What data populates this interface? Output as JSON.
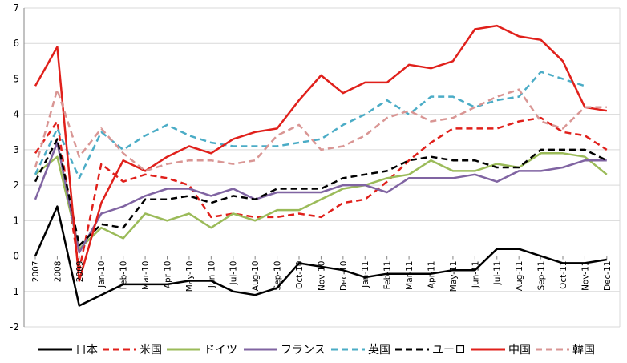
{
  "chart_data": {
    "type": "line",
    "title": "",
    "xlabel": "",
    "ylabel": "",
    "ylim": [
      -2,
      7
    ],
    "yticks": [
      -2,
      -1,
      0,
      1,
      2,
      3,
      4,
      5,
      6,
      7
    ],
    "grid": true,
    "legend_position": "bottom",
    "categories": [
      "2007",
      "2008",
      "2009",
      "Jan-10",
      "Feb-10",
      "Mar-10",
      "Apr-10",
      "May-10",
      "Jun-10",
      "Jul-10",
      "Aug-10",
      "Sep-10",
      "Oct-10",
      "Nov-10",
      "Dec-10",
      "Jan-11",
      "Feb-11",
      "Mar-11",
      "Apr-11",
      "May-11",
      "Jun-11",
      "Jul-11",
      "Aug-11",
      "Sep-11",
      "Oct-11",
      "Nov-11",
      "Dec-11"
    ],
    "tick_labels": [
      "2007",
      "2008",
      "2009",
      "Jan-10",
      "Feb-10",
      "Mar-10",
      "Apr-10",
      "May-10",
      "Jun-10",
      "Jul-10",
      "Aug-10",
      "Sep-10",
      "Oct-10",
      "Nov-10",
      "Dec-10",
      "Jan-11",
      "Feb-11",
      "Mar-11",
      "Apr-11",
      "May-11",
      "Jun-11",
      "Jul-11",
      "Aug-11",
      "Sep-11",
      "Oct-11",
      "Nov-11",
      "Dec-11"
    ],
    "series": [
      {
        "name": "日本",
        "color": "#000000",
        "dash": "solid",
        "values": [
          0,
          1.4,
          -1.4,
          -1.1,
          -0.8,
          -0.8,
          -0.8,
          -0.7,
          -0.7,
          -1.0,
          -1.1,
          -0.9,
          -0.2,
          -0.3,
          -0.4,
          -0.6,
          -0.5,
          -0.5,
          -0.5,
          -0.4,
          -0.4,
          0.2,
          0.2,
          0.0,
          -0.2,
          -0.2,
          -0.1
        ]
      },
      {
        "name": "米国",
        "color": "#e0201b",
        "dash": "dashed",
        "values": [
          2.9,
          3.8,
          -0.4,
          2.6,
          2.1,
          2.3,
          2.2,
          2.0,
          1.1,
          1.2,
          1.1,
          1.1,
          1.2,
          1.1,
          1.5,
          1.6,
          2.1,
          2.7,
          3.2,
          3.6,
          3.6,
          3.6,
          3.8,
          3.9,
          3.5,
          3.4,
          3.0
        ]
      },
      {
        "name": "ドイツ",
        "color": "#9bbb59",
        "dash": "solid",
        "values": [
          2.3,
          2.8,
          0.2,
          0.8,
          0.5,
          1.2,
          1.0,
          1.2,
          0.8,
          1.2,
          1.0,
          1.3,
          1.3,
          1.6,
          1.9,
          2.0,
          2.2,
          2.3,
          2.7,
          2.4,
          2.4,
          2.6,
          2.5,
          2.9,
          2.9,
          2.8,
          2.3
        ]
      },
      {
        "name": "フランス",
        "color": "#8064a2",
        "dash": "solid",
        "values": [
          1.6,
          3.2,
          0.1,
          1.2,
          1.4,
          1.7,
          1.9,
          1.9,
          1.7,
          1.9,
          1.6,
          1.8,
          1.8,
          1.8,
          2.0,
          2.0,
          1.8,
          2.2,
          2.2,
          2.2,
          2.3,
          2.1,
          2.4,
          2.4,
          2.5,
          2.7,
          2.7
        ]
      },
      {
        "name": "英国",
        "color": "#4bacc6",
        "dash": "dashed",
        "values": [
          2.3,
          3.6,
          2.2,
          3.5,
          3.0,
          3.4,
          3.7,
          3.4,
          3.2,
          3.1,
          3.1,
          3.1,
          3.2,
          3.3,
          3.7,
          4.0,
          4.4,
          4.0,
          4.5,
          4.5,
          4.2,
          4.4,
          4.5,
          5.2,
          5.0,
          4.8,
          null
        ]
      },
      {
        "name": "ユーロ",
        "color": "#000000",
        "dash": "dashed",
        "values": [
          2.1,
          3.3,
          0.3,
          0.9,
          0.8,
          1.6,
          1.6,
          1.7,
          1.5,
          1.7,
          1.6,
          1.9,
          1.9,
          1.9,
          2.2,
          2.3,
          2.4,
          2.7,
          2.8,
          2.7,
          2.7,
          2.5,
          2.5,
          3.0,
          3.0,
          3.0,
          2.7
        ]
      },
      {
        "name": "中国",
        "color": "#e0201b",
        "dash": "solid",
        "values": [
          4.8,
          5.9,
          -0.7,
          1.5,
          2.7,
          2.4,
          2.8,
          3.1,
          2.9,
          3.3,
          3.5,
          3.6,
          4.4,
          5.1,
          4.6,
          4.9,
          4.9,
          5.4,
          5.3,
          5.5,
          6.4,
          6.5,
          6.2,
          6.1,
          5.5,
          4.2,
          4.1
        ]
      },
      {
        "name": "韓国",
        "color": "#d99694",
        "dash": "dashed",
        "values": [
          2.5,
          4.7,
          2.8,
          3.6,
          2.9,
          2.4,
          2.6,
          2.7,
          2.7,
          2.6,
          2.7,
          3.4,
          3.7,
          3.0,
          3.1,
          3.4,
          3.9,
          4.1,
          3.8,
          3.9,
          4.2,
          4.5,
          4.7,
          3.8,
          3.6,
          4.2,
          4.2
        ]
      }
    ]
  }
}
